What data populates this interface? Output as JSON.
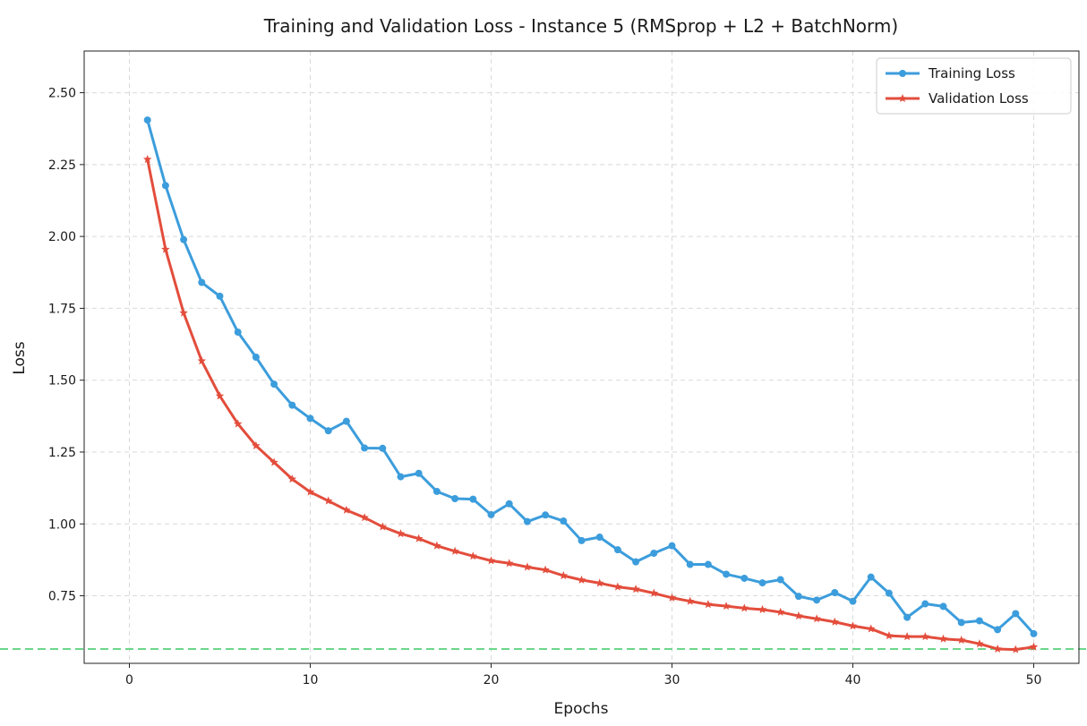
{
  "chart_data": {
    "type": "line",
    "title": "Training and Validation Loss - Instance 5 (RMSprop + L2 + BatchNorm)",
    "xlabel": "Epochs",
    "ylabel": "Loss",
    "xlim": [
      -2.5,
      52.5
    ],
    "ylim": [
      0.515,
      2.645
    ],
    "x_ticks": [
      0,
      10,
      20,
      30,
      40,
      50
    ],
    "y_ticks": [
      0.75,
      1.0,
      1.25,
      1.5,
      1.75,
      2.0,
      2.25,
      2.5
    ],
    "grid": true,
    "legend_position": "top-right",
    "x": [
      1,
      2,
      3,
      4,
      5,
      6,
      7,
      8,
      9,
      10,
      11,
      12,
      13,
      14,
      15,
      16,
      17,
      18,
      19,
      20,
      21,
      22,
      23,
      24,
      25,
      26,
      27,
      28,
      29,
      30,
      31,
      32,
      33,
      34,
      35,
      36,
      37,
      38,
      39,
      40,
      41,
      42,
      43,
      44,
      45,
      46,
      47,
      48,
      49,
      50
    ],
    "series": [
      {
        "name": "Training Loss",
        "color": "#3c9ddc",
        "marker": "circle",
        "values": [
          2.405,
          2.177,
          1.989,
          1.84,
          1.792,
          1.667,
          1.58,
          1.486,
          1.413,
          1.367,
          1.324,
          1.357,
          1.264,
          1.263,
          1.164,
          1.176,
          1.113,
          1.088,
          1.086,
          1.032,
          1.07,
          1.008,
          1.031,
          1.01,
          0.942,
          0.954,
          0.91,
          0.868,
          0.898,
          0.924,
          0.859,
          0.859,
          0.825,
          0.811,
          0.795,
          0.806,
          0.748,
          0.735,
          0.761,
          0.731,
          0.815,
          0.759,
          0.675,
          0.722,
          0.713,
          0.657,
          0.663,
          0.632,
          0.688,
          0.618
        ]
      },
      {
        "name": "Validation Loss",
        "color": "#e34d3c",
        "marker": "star",
        "values": [
          2.268,
          1.955,
          1.734,
          1.567,
          1.445,
          1.348,
          1.272,
          1.214,
          1.156,
          1.111,
          1.08,
          1.048,
          1.022,
          0.99,
          0.966,
          0.949,
          0.924,
          0.905,
          0.888,
          0.872,
          0.863,
          0.85,
          0.84,
          0.82,
          0.805,
          0.794,
          0.781,
          0.773,
          0.759,
          0.743,
          0.731,
          0.72,
          0.714,
          0.707,
          0.702,
          0.693,
          0.68,
          0.67,
          0.659,
          0.645,
          0.635,
          0.611,
          0.608,
          0.608,
          0.6,
          0.596,
          0.583,
          0.565,
          0.563,
          0.572
        ]
      }
    ],
    "reference_line": {
      "y": 0.565,
      "color": "#6bd68a",
      "style": "dashed"
    }
  }
}
